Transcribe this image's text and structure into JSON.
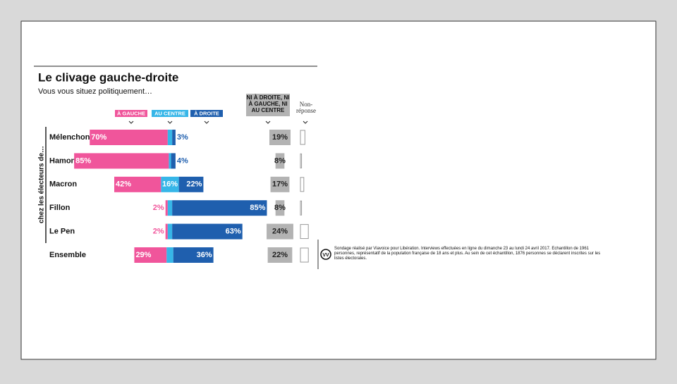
{
  "chart_data": {
    "type": "bar",
    "title": "Le clivage gauche-droite",
    "subtitle": "Vous vous situez politiquement…",
    "y_label": "chez les électeurs de…",
    "categories": [
      "Mélenchon",
      "Hamon",
      "Macron",
      "Fillon",
      "Le Pen",
      "Ensemble"
    ],
    "series": [
      {
        "name": "À GAUCHE",
        "color": "#f0559b",
        "values": [
          70,
          85,
          42,
          2,
          2,
          29
        ],
        "value_labels": [
          "70%",
          "85%",
          "42%",
          "2%",
          "2%",
          "29%"
        ]
      },
      {
        "name": "AU CENTRE",
        "color": "#36b6e8",
        "values": [
          4,
          2,
          16,
          4,
          4,
          6
        ],
        "value_labels": [
          null,
          null,
          "16%",
          null,
          null,
          null
        ]
      },
      {
        "name": "À DROITE",
        "color": "#1f5fae",
        "values": [
          3,
          4,
          22,
          85,
          63,
          36
        ],
        "value_labels": [
          "3%",
          "4%",
          "22%",
          "85%",
          "63%",
          "36%"
        ]
      },
      {
        "name": "NI À DROITE, NI À GAUCHE, NI AU CENTRE",
        "color": "#b3b3b3",
        "values": [
          19,
          8,
          17,
          8,
          24,
          22
        ],
        "value_labels": [
          "19%",
          "8%",
          "17%",
          "8%",
          "24%",
          "22%"
        ]
      },
      {
        "name": "Non-réponse",
        "color": "#ffffff",
        "values": [
          4,
          1,
          3,
          1,
          7,
          7
        ]
      }
    ],
    "note": "Sondage réalisé par Viavoice pour Libération. Interviews effectuées en ligne du dimanche 23 au lundi 24 avril 2017. Echantillon de 1961 personnes, représentatif de la population française de 18 ans et plus. Au sein de cet échantillon, 1876 personnes se déclarent inscrites sur les listes électorales."
  }
}
